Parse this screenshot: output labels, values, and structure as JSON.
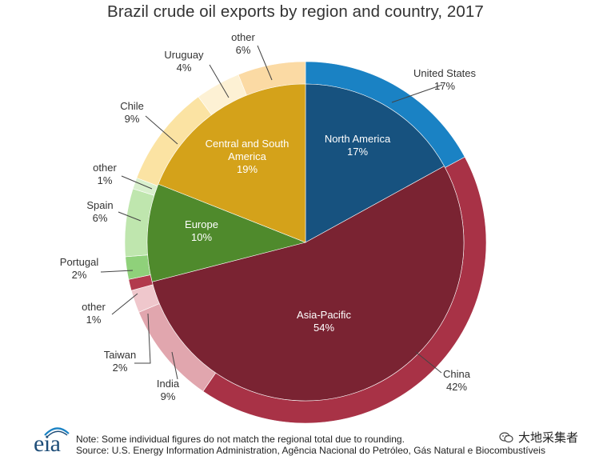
{
  "title": "Brazil crude oil exports by region and country, 2017",
  "chart_data": {
    "type": "pie",
    "title": "Brazil crude oil exports by region and country, 2017",
    "regions": [
      {
        "name": "North America",
        "value": 17,
        "label": "17%",
        "color": "#17527f"
      },
      {
        "name": "Asia-Pacific",
        "value": 54,
        "label": "54%",
        "color": "#7a2332"
      },
      {
        "name": "Europe",
        "value": 10,
        "label": "10%",
        "color": "#4f8a2c"
      },
      {
        "name": "Central and South America",
        "value": 19,
        "label": "19%",
        "color": "#d4a21a"
      }
    ],
    "countries": [
      {
        "name": "United States",
        "value": 17,
        "label": "17%",
        "region": "North America",
        "color": "#1a82c4"
      },
      {
        "name": "China",
        "value": 42,
        "label": "42%",
        "region": "Asia-Pacific",
        "color": "#a83246"
      },
      {
        "name": "India",
        "value": 9,
        "label": "9%",
        "region": "Asia-Pacific",
        "color": "#e1a6ae"
      },
      {
        "name": "Taiwan",
        "value": 2,
        "label": "2%",
        "region": "Asia-Pacific",
        "color": "#efc7cc"
      },
      {
        "name": "other",
        "value": 1,
        "label": "1%",
        "region": "Asia-Pacific",
        "color": "#b23a4d"
      },
      {
        "name": "Portugal",
        "value": 2,
        "label": "2%",
        "region": "Europe",
        "color": "#8fd17a"
      },
      {
        "name": "Spain",
        "value": 6,
        "label": "6%",
        "region": "Europe",
        "color": "#bfe6ae"
      },
      {
        "name": "other",
        "value": 1,
        "label": "1%",
        "region": "Europe",
        "color": "#d9f0cd"
      },
      {
        "name": "Chile",
        "value": 9,
        "label": "9%",
        "region": "Central and South America",
        "color": "#fbe3a3"
      },
      {
        "name": "Uruguay",
        "value": 4,
        "label": "4%",
        "region": "Central and South America",
        "color": "#fdf1d4"
      },
      {
        "name": "other",
        "value": 6,
        "label": "6%",
        "region": "Central and South America",
        "color": "#fbdaa4"
      }
    ]
  },
  "footer": {
    "logo_text": "eia",
    "note": "Note: Some individual figures do not match the regional total  due to rounding.",
    "source": "Source: U.S. Energy Information Administration, Agência Nacional do Petróleo, Gás Natural e Biocombustíveis",
    "watermark": "大地采集者"
  }
}
